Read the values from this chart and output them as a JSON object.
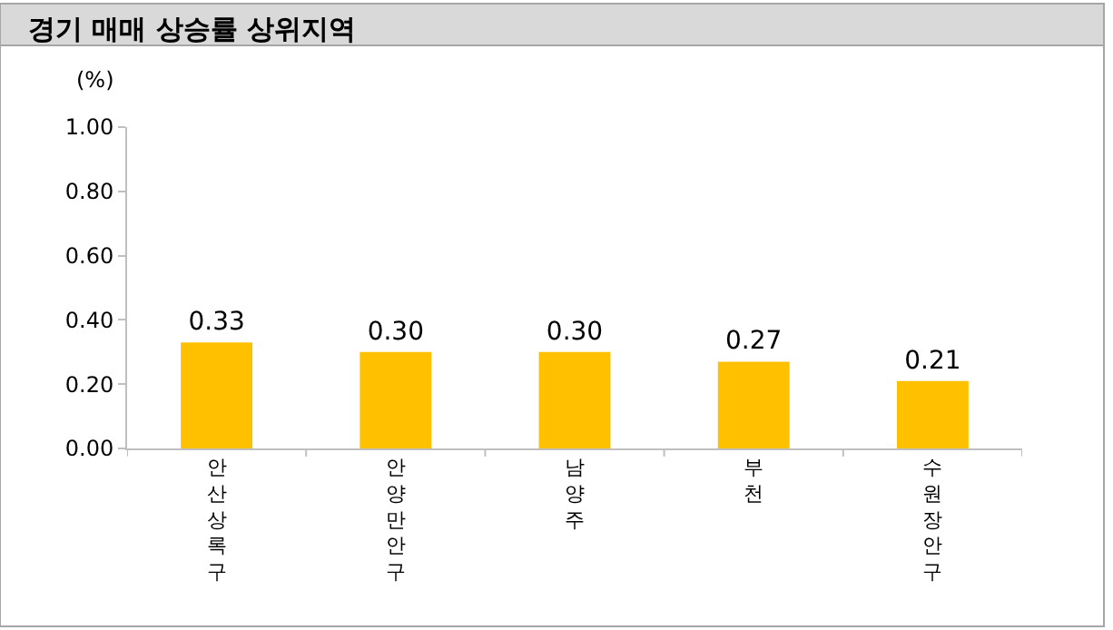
{
  "chart_data": {
    "type": "bar",
    "title": "경기 매매 상승률 상위지역",
    "ylabel": "(%)",
    "categories": [
      "안산 상록구",
      "안양 만안구",
      "남양주",
      "부천",
      "수원 장안구"
    ],
    "values": [
      0.33,
      0.3,
      0.3,
      0.27,
      0.21
    ],
    "color": "#ffc000",
    "value_labels": [
      "0.33",
      "0.30",
      "0.30",
      "0.27",
      "0.21"
    ],
    "ylim": [
      0,
      1
    ],
    "yticks": [
      {
        "value": 0,
        "label": "0.00"
      },
      {
        "value": 0.2,
        "label": "0.20"
      },
      {
        "value": 0.4,
        "label": "0.40"
      },
      {
        "value": 0.6,
        "label": "0.60"
      },
      {
        "value": 0.8,
        "label": "0.80"
      },
      {
        "value": 1,
        "label": "1.00"
      }
    ],
    "grid": false
  }
}
